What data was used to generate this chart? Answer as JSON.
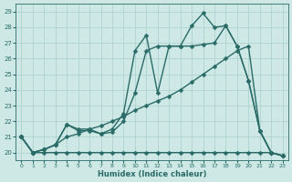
{
  "xlabel": "Humidex (Indice chaleur)",
  "bg_color": "#cde8e5",
  "grid_color": "#aacfcc",
  "line_color": "#2a6b68",
  "xlim": [
    -0.5,
    23.5
  ],
  "ylim": [
    19.5,
    29.5
  ],
  "yticks": [
    20,
    21,
    22,
    23,
    24,
    25,
    26,
    27,
    28,
    29
  ],
  "xticks": [
    0,
    1,
    2,
    3,
    4,
    5,
    6,
    7,
    8,
    9,
    10,
    11,
    12,
    13,
    14,
    15,
    16,
    17,
    18,
    19,
    20,
    21,
    22,
    23
  ],
  "series": [
    [
      21.0,
      20.0,
      20.2,
      20.5,
      21.8,
      21.5,
      21.5,
      21.2,
      21.5,
      22.5,
      26.5,
      27.5,
      23.8,
      26.8,
      26.8,
      28.1,
      28.9,
      28.0,
      28.1,
      26.8,
      24.6,
      21.4,
      20.0,
      19.8
    ],
    [
      21.0,
      20.0,
      20.2,
      20.5,
      21.8,
      21.4,
      21.4,
      21.2,
      21.3,
      22.0,
      23.8,
      26.5,
      26.8,
      26.8,
      26.8,
      26.8,
      26.9,
      27.0,
      28.1,
      26.8,
      24.6,
      21.4,
      20.0,
      19.8
    ],
    [
      21.0,
      20.0,
      20.2,
      20.5,
      21.0,
      21.2,
      21.5,
      21.7,
      22.0,
      22.3,
      22.7,
      23.0,
      23.3,
      23.6,
      24.0,
      24.5,
      25.0,
      25.5,
      26.0,
      26.5,
      26.8,
      21.4,
      20.0,
      19.8
    ],
    [
      21.0,
      20.0,
      20.0,
      20.0,
      20.0,
      20.0,
      20.0,
      20.0,
      20.0,
      20.0,
      20.0,
      20.0,
      20.0,
      20.0,
      20.0,
      20.0,
      20.0,
      20.0,
      20.0,
      20.0,
      20.0,
      20.0,
      20.0,
      19.8
    ]
  ],
  "marker_size": 2.5,
  "line_width": 1.0
}
